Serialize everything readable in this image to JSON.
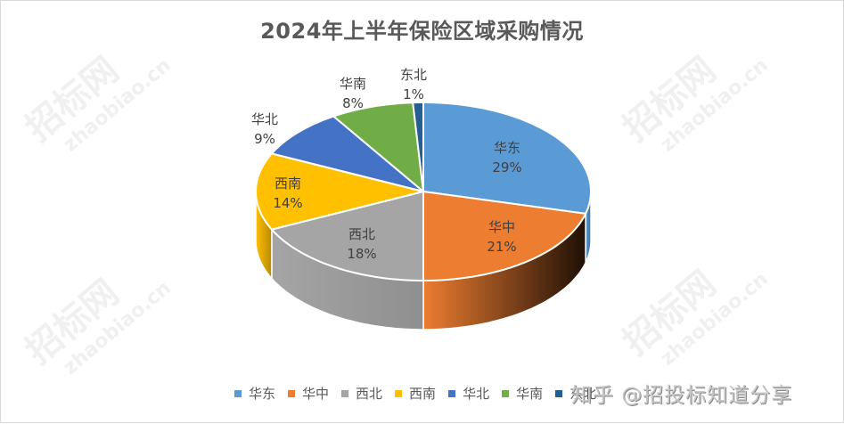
{
  "chart_data": {
    "type": "pie",
    "style": "3d-pie",
    "title": "2024年上半年保险区域采购情况",
    "categories": [
      "华东",
      "华中",
      "西北",
      "西南",
      "华北",
      "华南",
      "东北"
    ],
    "values": [
      29,
      21,
      18,
      14,
      9,
      8,
      1
    ],
    "value_suffix": "%",
    "colors": [
      "#5B9BD5",
      "#ED7D31",
      "#A5A5A5",
      "#FFC000",
      "#4472C4",
      "#70AD47",
      "#255E91"
    ],
    "side_colors": [
      "#3a6e9e",
      "#8a4210",
      "#8f8f8f",
      "#b88a00",
      "#2f5394",
      "#4f7d31",
      "#1a4266"
    ],
    "legend_position": "bottom",
    "start_angle_deg": 0,
    "direction": "clockwise"
  },
  "labels": [
    {
      "name": "华东",
      "pct": "29%"
    },
    {
      "name": "华中",
      "pct": "21%"
    },
    {
      "name": "西北",
      "pct": "18%"
    },
    {
      "name": "西南",
      "pct": "14%"
    },
    {
      "name": "华北",
      "pct": "9%"
    },
    {
      "name": "华南",
      "pct": "8%"
    },
    {
      "name": "东北",
      "pct": "1%"
    }
  ],
  "legend": [
    "华东",
    "华中",
    "西北",
    "西南",
    "华北",
    "华南",
    "东北"
  ],
  "watermark": {
    "main": "招标网",
    "sub": "zhaobiao.cn"
  },
  "credit": "知乎 @招投标知道分享"
}
